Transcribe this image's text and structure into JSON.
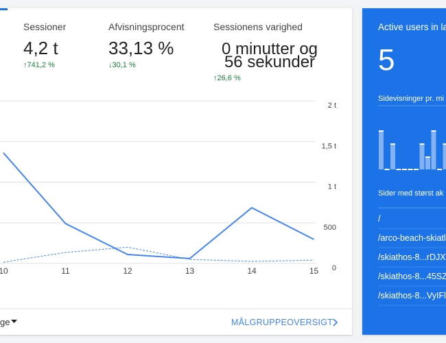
{
  "metrics": [
    {
      "label": "Sessioner",
      "value": [
        "4,2 t"
      ],
      "change": "↑741,2 %"
    },
    {
      "label": "Afvisningsprocent",
      "value": [
        "33,13 %"
      ],
      "change": "↓30,1 %"
    },
    {
      "label": "Sessionens varighed",
      "value": [
        "0 minutter og",
        "56 sekunder"
      ],
      "change": "↑26,6 %"
    }
  ],
  "chart_data": {
    "type": "line",
    "categories": [
      "10",
      "11",
      "12",
      "13",
      "14",
      "15"
    ],
    "series": [
      {
        "color": "#4285f4",
        "style": "solid",
        "values": [
          1360,
          490,
          110,
          60,
          685,
          295
        ]
      },
      {
        "color": "#4285f4",
        "style": "dashed",
        "values": [
          15,
          135,
          200,
          50,
          25,
          40
        ]
      }
    ],
    "ylim": [
      0,
      2000
    ],
    "yticks": [
      0,
      500,
      {
        "value": 1000,
        "label": "1 t"
      },
      {
        "value": 1500,
        "label": "1,5 t"
      },
      {
        "value": 2000,
        "label": "2 t"
      }
    ],
    "grid": true
  },
  "footer": {
    "dropdown": "ge",
    "link": "MÅLGRUPPEOVERSIGT"
  },
  "realtime": {
    "title": "Active users in la",
    "count": 5,
    "pageviews_title": "Sidevisninger pr. mi",
    "pageviews": [
      3,
      0,
      2,
      0,
      0,
      0,
      0,
      2,
      1,
      3,
      0,
      2
    ],
    "pages_title": "Sider med størst ak",
    "pages": [
      "/",
      "/arco-beach-skiatl",
      "/skiathos-8...rDJX",
      "/skiathos-8...45SZ",
      "/skiathos-8...VyIFl"
    ]
  }
}
